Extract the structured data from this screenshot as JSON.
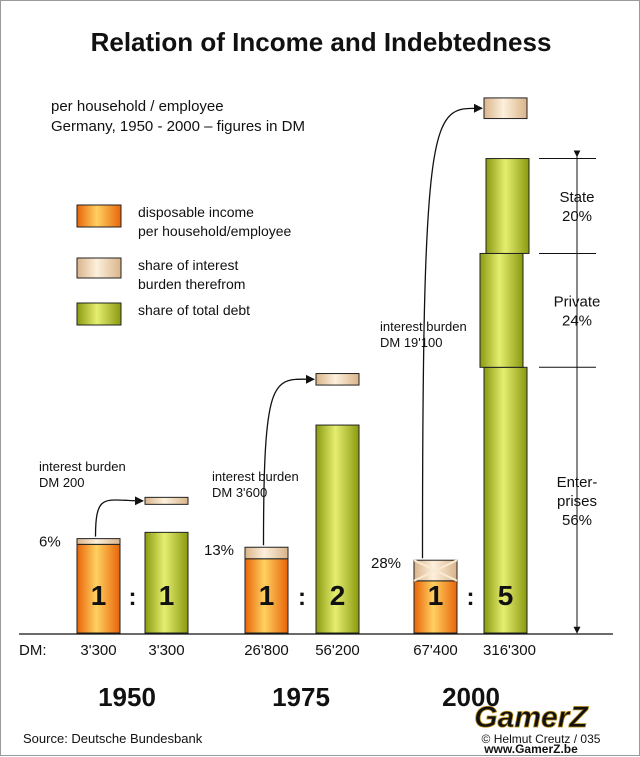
{
  "chart_data": {
    "type": "bar",
    "title": "Relation of Income and Indebtedness",
    "subtitle_lines": [
      "per household / employee",
      "Germany, 1950 - 2000 – figures in DM"
    ],
    "legend": [
      {
        "key": "income",
        "lines": [
          "disposable income",
          "per household/employee"
        ]
      },
      {
        "key": "interest",
        "lines": [
          "share of interest",
          "burden therefrom"
        ]
      },
      {
        "key": "debt",
        "lines": [
          "share of total debt"
        ]
      }
    ],
    "dm_label": "DM:",
    "colon": ":",
    "groups": [
      {
        "year": "1950",
        "income": 3300,
        "income_label": "3'300",
        "debt": 3300,
        "debt_label": "3'300",
        "interest": 200,
        "interest_pct": "6%",
        "interest_lines": [
          "interest burden",
          "DM 200"
        ],
        "ratio_left": "1",
        "ratio_right": "1"
      },
      {
        "year": "1975",
        "income": 26800,
        "income_label": "26'800",
        "debt": 56200,
        "debt_label": "56'200",
        "interest": 3600,
        "interest_pct": "13%",
        "interest_lines": [
          "interest burden",
          "DM 3'600"
        ],
        "ratio_left": "1",
        "ratio_right": "2"
      },
      {
        "year": "2000",
        "income": 67400,
        "income_label": "67'400",
        "debt": 316300,
        "debt_label": "316'300",
        "interest": 19100,
        "interest_pct": "28%",
        "interest_lines": [
          "interest burden",
          "DM 19'100"
        ],
        "ratio_left": "1",
        "ratio_right": "5",
        "debt_split": [
          {
            "lines": [
              "Enter-",
              "prises",
              "56%"
            ],
            "share": 56
          },
          {
            "lines": [
              "Private",
              "24%"
            ],
            "share": 24
          },
          {
            "lines": [
              "State",
              "20%"
            ],
            "share": 20
          }
        ]
      }
    ],
    "source": "Source: Deutsche Bundesbank",
    "watermark": "GamerZ",
    "credit": "© Helmut Creutz / 035",
    "site": "www.GamerZ.be"
  },
  "colors": {
    "income_edge": "#e8650a",
    "income_mid": "#ffd060",
    "interest_edge": "#d9b48a",
    "interest_mid": "#fdf0dc",
    "debt_edge": "#8a9a10",
    "debt_mid": "#e6ee70",
    "watermark": "#f3c24a"
  }
}
